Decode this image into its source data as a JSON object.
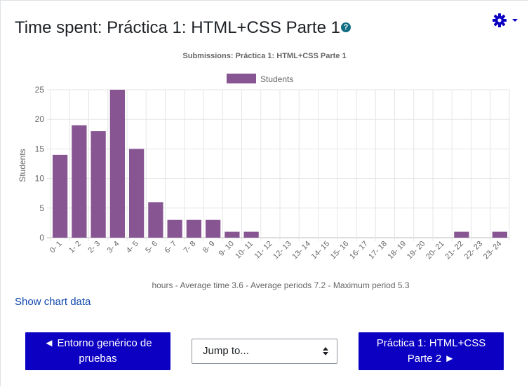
{
  "page": {
    "title": "Time spent: Práctica 1: HTML+CSS Parte 1",
    "help_icon": "question-circle-icon",
    "settings_icon": "gear-icon"
  },
  "chart_data": {
    "type": "bar",
    "title": "Submissions: Práctica 1: HTML+CSS Parte 1",
    "xlabel": "hours - Average time 3.6 - Average periods 7.2 - Maximum period 5.3",
    "ylabel": "Students",
    "ylim": [
      0,
      25
    ],
    "yticks": [
      0,
      5,
      10,
      15,
      20,
      25
    ],
    "grid": true,
    "legend_position": "top-center",
    "categories": [
      "0- 1",
      "1- 2",
      "2- 3",
      "3- 4",
      "4- 5",
      "5- 6",
      "6- 7",
      "7- 8",
      "8- 9",
      "9- 10",
      "10- 11",
      "11- 12",
      "12- 13",
      "13- 14",
      "14- 15",
      "15- 16",
      "16- 17",
      "17- 18",
      "18- 19",
      "19- 20",
      "20- 21",
      "21- 22",
      "22- 23",
      "23- 24"
    ],
    "series": [
      {
        "name": "Students",
        "color": "#875692",
        "values": [
          14,
          19,
          18,
          25,
          15,
          6,
          3,
          3,
          3,
          1,
          1,
          0,
          0,
          0,
          0,
          0,
          0,
          0,
          0,
          0,
          0,
          1,
          0,
          1
        ]
      }
    ]
  },
  "links": {
    "show_chart_data": "Show chart data"
  },
  "nav": {
    "prev_label": "◄ Entorno genérico de pruebas",
    "jump_label": "Jump to...",
    "next_label": "Práctica 1: HTML+CSS Parte 2 ►"
  }
}
